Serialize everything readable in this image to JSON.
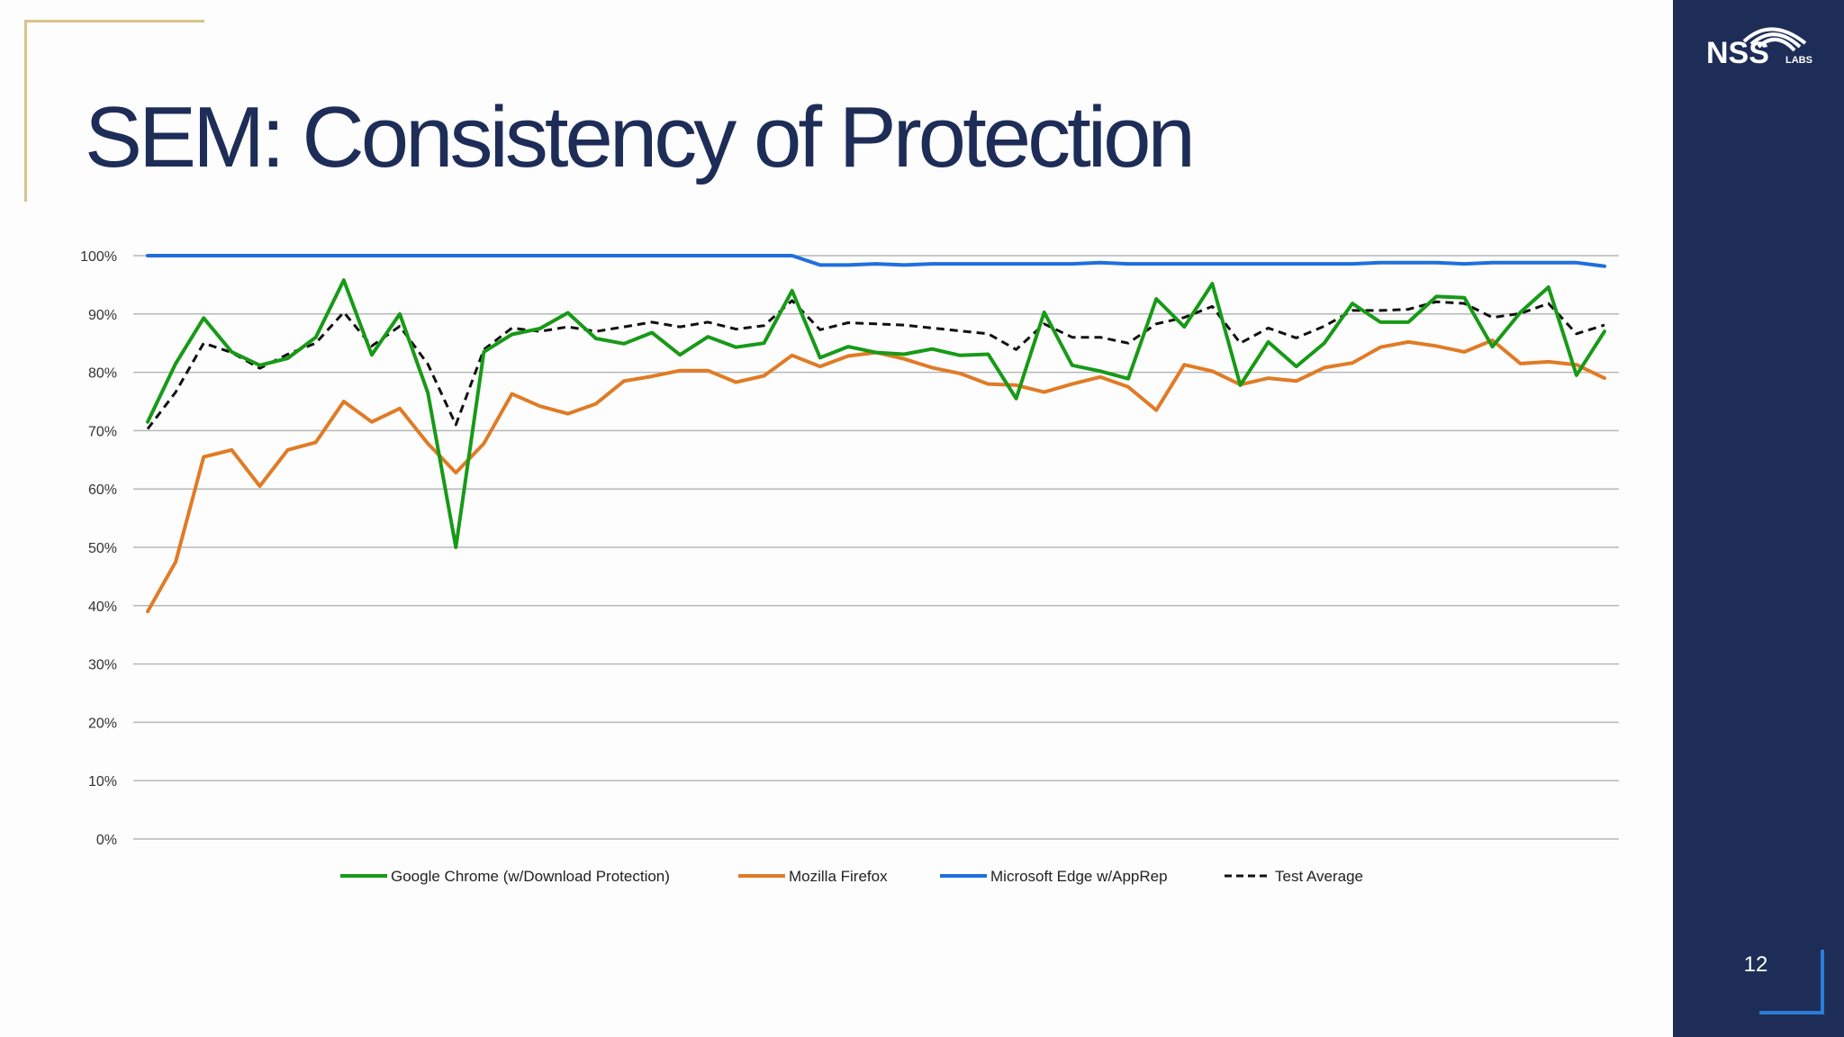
{
  "slide": {
    "title": "SEM: Consistency of Protection",
    "page_number": "12",
    "logo_text": "NSS",
    "logo_subtext": "LABS"
  },
  "chart_data": {
    "type": "line",
    "title": "",
    "xlabel": "",
    "ylabel": "",
    "ylim": [
      0,
      100
    ],
    "y_ticks": [
      "0%",
      "10%",
      "20%",
      "30%",
      "40%",
      "50%",
      "60%",
      "70%",
      "80%",
      "90%",
      "100%"
    ],
    "grid": true,
    "legend": "bottom",
    "x": [
      1,
      2,
      3,
      4,
      5,
      6,
      7,
      8,
      9,
      10,
      11,
      12,
      13,
      14,
      15,
      16,
      17,
      18,
      19,
      20,
      21,
      22,
      23,
      24,
      25,
      26,
      27,
      28,
      29,
      30,
      31,
      32,
      33,
      34,
      35,
      36,
      37,
      38,
      39,
      40,
      41,
      42,
      43,
      44,
      45,
      46,
      47,
      48,
      49,
      50,
      51,
      52,
      53
    ],
    "series": [
      {
        "name": "Google Chrome (w/Download Protection)",
        "color": "#179a17",
        "dash": "solid",
        "values": [
          71.5,
          81.5,
          89.3,
          83.5,
          81.2,
          82.4,
          86,
          95.8,
          83,
          90,
          76.5,
          50,
          83.5,
          86.5,
          87.5,
          90.2,
          85.8,
          84.9,
          86.8,
          83,
          86.1,
          84.3,
          85,
          94,
          82.5,
          84.4,
          83.4,
          83.1,
          84,
          82.9,
          83.1,
          75.5,
          90.3,
          81.2,
          80.2,
          78.9,
          92.6,
          87.8,
          95.2,
          77.8,
          85.2,
          81,
          85,
          91.8,
          88.6,
          88.6,
          93,
          92.8,
          84.4,
          90.3,
          94.6,
          79.5,
          87
        ]
      },
      {
        "name": "Mozilla Firefox",
        "color": "#e07b25",
        "dash": "solid",
        "values": [
          39,
          47.5,
          65.5,
          66.7,
          60.5,
          66.7,
          68,
          75,
          71.5,
          73.8,
          67.8,
          62.8,
          67.8,
          76.3,
          74.2,
          72.9,
          74.6,
          78.5,
          79.3,
          80.3,
          80.3,
          78.3,
          79.4,
          82.9,
          81,
          82.8,
          83.4,
          82.3,
          80.8,
          79.8,
          78,
          77.8,
          76.6,
          78,
          79.2,
          77.5,
          73.5,
          81.3,
          80.2,
          77.9,
          79,
          78.5,
          80.8,
          81.6,
          84.3,
          85.2,
          84.5,
          83.5,
          85.5,
          81.5,
          81.8,
          81.3,
          79
        ]
      },
      {
        "name": "Microsoft Edge w/AppRep",
        "color": "#1f6fde",
        "dash": "solid",
        "values": [
          100,
          100,
          100,
          100,
          100,
          100,
          100,
          100,
          100,
          100,
          100,
          100,
          100,
          100,
          100,
          100,
          100,
          100,
          100,
          100,
          100,
          100,
          100,
          100,
          98.4,
          98.4,
          98.6,
          98.4,
          98.6,
          98.6,
          98.6,
          98.6,
          98.6,
          98.6,
          98.8,
          98.6,
          98.6,
          98.6,
          98.6,
          98.6,
          98.6,
          98.6,
          98.6,
          98.6,
          98.8,
          98.8,
          98.8,
          98.6,
          98.8,
          98.8,
          98.8,
          98.8,
          98.2
        ]
      },
      {
        "name": "Test Average",
        "color": "#111111",
        "dash": "dashed",
        "values": [
          70.3,
          76.6,
          85,
          83.4,
          80.7,
          83.1,
          85,
          90.3,
          84.5,
          87.9,
          81.4,
          71,
          83.9,
          87.6,
          87,
          87.8,
          87,
          87.8,
          88.6,
          87.8,
          88.6,
          87.4,
          88,
          92.3,
          87.3,
          88.5,
          88.3,
          88.1,
          87.6,
          87.1,
          86.6,
          83.9,
          88.3,
          86,
          86,
          85,
          88.3,
          89.4,
          91.3,
          85,
          87.6,
          85.9,
          87.9,
          90.6,
          90.6,
          90.8,
          92.1,
          91.8,
          89.4,
          90.1,
          91.8,
          86.6,
          88.1
        ]
      }
    ]
  }
}
